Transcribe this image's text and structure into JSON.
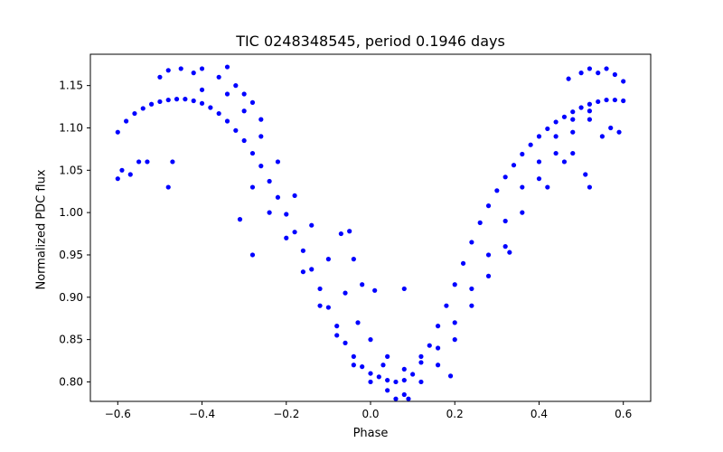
{
  "chart_data": {
    "type": "scatter",
    "title": "TIC 0248348545, period 0.1946 days",
    "xlabel": "Phase",
    "ylabel": "Normalized PDC flux",
    "xlim": [
      -0.665,
      0.665
    ],
    "ylim": [
      0.777,
      1.187
    ],
    "x_ticks": [
      -0.6,
      -0.4,
      -0.2,
      0.0,
      0.2,
      0.4,
      0.6
    ],
    "x_tick_labels": [
      "−0.6",
      "−0.4",
      "−0.2",
      "0.0",
      "0.2",
      "0.4",
      "0.6"
    ],
    "y_ticks": [
      0.8,
      0.85,
      0.9,
      0.95,
      1.0,
      1.05,
      1.1,
      1.15
    ],
    "y_tick_labels": [
      "0.80",
      "0.85",
      "0.90",
      "0.95",
      "1.00",
      "1.05",
      "1.10",
      "1.15"
    ],
    "grid": false,
    "marker_color": "#0000ff",
    "series": [
      {
        "points": [
          [
            -0.6,
            1.095
          ],
          [
            -0.58,
            1.108
          ],
          [
            -0.56,
            1.117
          ],
          [
            -0.54,
            1.123
          ],
          [
            -0.52,
            1.128
          ],
          [
            -0.5,
            1.131
          ],
          [
            -0.48,
            1.133
          ],
          [
            -0.46,
            1.134
          ],
          [
            -0.44,
            1.134
          ],
          [
            -0.42,
            1.132
          ],
          [
            -0.4,
            1.129
          ],
          [
            -0.38,
            1.124
          ],
          [
            -0.36,
            1.117
          ],
          [
            -0.34,
            1.108
          ],
          [
            -0.32,
            1.097
          ],
          [
            -0.3,
            1.085
          ],
          [
            -0.28,
            1.07
          ],
          [
            -0.26,
            1.055
          ],
          [
            -0.24,
            1.037
          ],
          [
            -0.22,
            1.018
          ],
          [
            -0.2,
            0.998
          ],
          [
            -0.18,
            0.977
          ],
          [
            -0.16,
            0.955
          ],
          [
            -0.14,
            0.933
          ],
          [
            -0.12,
            0.91
          ],
          [
            -0.1,
            0.888
          ],
          [
            -0.08,
            0.866
          ],
          [
            -0.06,
            0.846
          ],
          [
            -0.04,
            0.83
          ],
          [
            -0.02,
            0.818
          ],
          [
            0.0,
            0.81
          ],
          [
            0.02,
            0.806
          ],
          [
            0.04,
            0.802
          ],
          [
            0.06,
            0.8
          ],
          [
            0.08,
            0.802
          ],
          [
            0.1,
            0.809
          ],
          [
            0.12,
            0.823
          ],
          [
            0.14,
            0.843
          ],
          [
            0.16,
            0.866
          ],
          [
            0.18,
            0.89
          ],
          [
            0.2,
            0.915
          ],
          [
            0.22,
            0.94
          ],
          [
            0.24,
            0.965
          ],
          [
            0.26,
            0.988
          ],
          [
            0.28,
            1.008
          ],
          [
            0.3,
            1.026
          ],
          [
            0.32,
            1.042
          ],
          [
            0.34,
            1.056
          ],
          [
            0.36,
            1.069
          ],
          [
            0.38,
            1.08
          ],
          [
            0.4,
            1.09
          ],
          [
            0.42,
            1.099
          ],
          [
            0.44,
            1.107
          ],
          [
            0.46,
            1.113
          ],
          [
            0.48,
            1.119
          ],
          [
            0.5,
            1.124
          ],
          [
            0.52,
            1.128
          ],
          [
            0.54,
            1.131
          ],
          [
            0.56,
            1.133
          ],
          [
            0.58,
            1.133
          ],
          [
            0.6,
            1.132
          ],
          [
            -0.4,
            1.145
          ],
          [
            -0.34,
            1.14
          ],
          [
            -0.3,
            1.12
          ],
          [
            -0.26,
            1.09
          ],
          [
            -0.22,
            1.06
          ],
          [
            -0.18,
            1.02
          ],
          [
            -0.14,
            0.985
          ],
          [
            -0.1,
            0.945
          ],
          [
            -0.06,
            0.905
          ],
          [
            -0.03,
            0.87
          ],
          [
            0.0,
            0.85
          ],
          [
            0.04,
            0.83
          ],
          [
            0.08,
            0.815
          ],
          [
            0.12,
            0.83
          ],
          [
            0.16,
            0.84
          ],
          [
            0.2,
            0.87
          ],
          [
            0.24,
            0.91
          ],
          [
            0.28,
            0.95
          ],
          [
            0.32,
            0.99
          ],
          [
            0.36,
            1.03
          ],
          [
            0.4,
            1.06
          ],
          [
            0.44,
            1.09
          ],
          [
            0.48,
            1.11
          ],
          [
            0.52,
            1.12
          ],
          [
            -0.28,
            1.03
          ],
          [
            -0.24,
            1.0
          ],
          [
            -0.2,
            0.97
          ],
          [
            -0.16,
            0.93
          ],
          [
            -0.12,
            0.89
          ],
          [
            -0.08,
            0.855
          ],
          [
            -0.04,
            0.82
          ],
          [
            0.0,
            0.8
          ],
          [
            0.04,
            0.79
          ],
          [
            0.08,
            0.785
          ],
          [
            0.12,
            0.8
          ],
          [
            0.16,
            0.82
          ],
          [
            0.2,
            0.85
          ],
          [
            0.24,
            0.89
          ],
          [
            0.28,
            0.925
          ],
          [
            0.32,
            0.96
          ],
          [
            0.36,
            1.0
          ],
          [
            0.4,
            1.04
          ],
          [
            0.44,
            1.07
          ],
          [
            0.48,
            1.095
          ],
          [
            0.52,
            1.11
          ],
          [
            -0.6,
            1.04
          ],
          [
            -0.59,
            1.05
          ],
          [
            -0.57,
            1.045
          ],
          [
            -0.55,
            1.06
          ],
          [
            -0.53,
            1.06
          ],
          [
            -0.48,
            1.03
          ],
          [
            -0.47,
            1.06
          ],
          [
            -0.5,
            1.16
          ],
          [
            -0.48,
            1.168
          ],
          [
            -0.45,
            1.17
          ],
          [
            -0.42,
            1.165
          ],
          [
            -0.4,
            1.17
          ],
          [
            -0.36,
            1.16
          ],
          [
            -0.34,
            1.172
          ],
          [
            -0.32,
            1.15
          ],
          [
            -0.3,
            1.14
          ],
          [
            -0.28,
            1.13
          ],
          [
            -0.26,
            1.11
          ],
          [
            -0.31,
            0.992
          ],
          [
            -0.28,
            0.95
          ],
          [
            -0.07,
            0.975
          ],
          [
            -0.05,
            0.978
          ],
          [
            -0.04,
            0.945
          ],
          [
            -0.02,
            0.915
          ],
          [
            0.01,
            0.908
          ],
          [
            0.03,
            0.82
          ],
          [
            0.06,
            0.78
          ],
          [
            0.09,
            0.78
          ],
          [
            0.19,
            0.807
          ],
          [
            0.08,
            0.91
          ],
          [
            0.33,
            0.953
          ],
          [
            0.42,
            1.03
          ],
          [
            0.46,
            1.06
          ],
          [
            0.48,
            1.07
          ],
          [
            0.51,
            1.045
          ],
          [
            0.52,
            1.03
          ],
          [
            0.55,
            1.09
          ],
          [
            0.57,
            1.1
          ],
          [
            0.59,
            1.095
          ],
          [
            0.5,
            1.165
          ],
          [
            0.52,
            1.17
          ],
          [
            0.54,
            1.165
          ],
          [
            0.47,
            1.158
          ],
          [
            0.56,
            1.17
          ],
          [
            0.58,
            1.163
          ],
          [
            0.6,
            1.155
          ]
        ]
      }
    ]
  }
}
